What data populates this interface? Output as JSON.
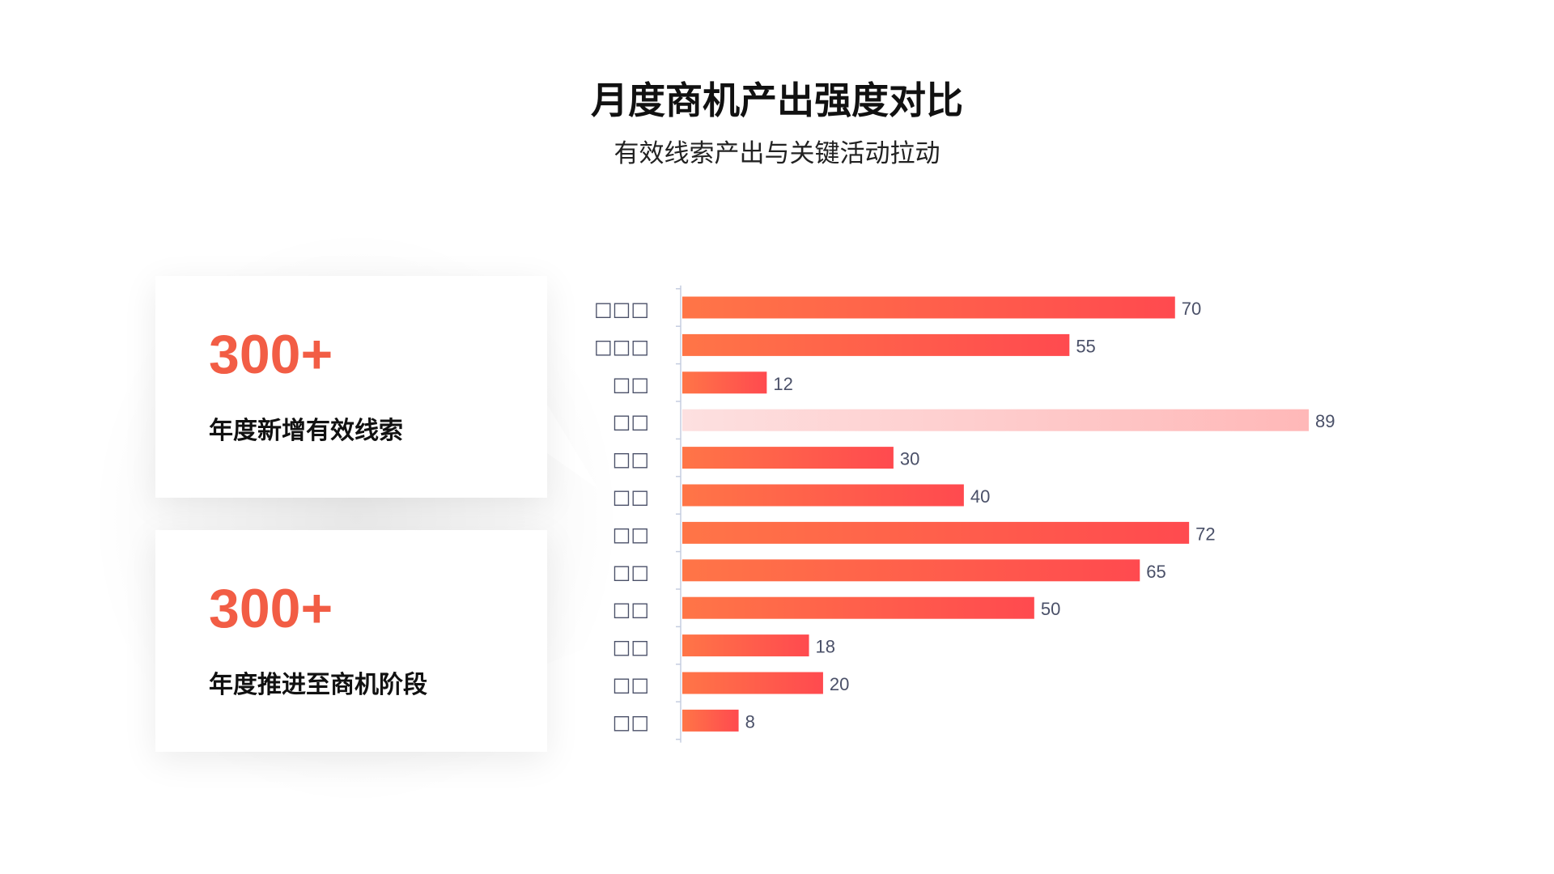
{
  "header": {
    "title": "月度商机产出强度对比",
    "subtitle": "有效线索产出与关键活动拉动"
  },
  "cards": [
    {
      "value": "300+",
      "label": "年度新增有效线索"
    },
    {
      "value": "300+",
      "label": "年度推进至商机阶段"
    }
  ],
  "colors": {
    "accent": "#f25d45",
    "bar_start": "#ff7547",
    "bar_end": "#ff4a4f",
    "highlight_start": "#fde0e0",
    "highlight_end": "#ffb8b8",
    "value_text": "#4a5068"
  },
  "chart_data": {
    "type": "bar",
    "orientation": "horizontal",
    "categories": [
      "□□□",
      "□□□",
      "□□",
      "□□",
      "□□",
      "□□",
      "□□",
      "□□",
      "□□",
      "□□",
      "□□",
      "□□"
    ],
    "values": [
      70,
      55,
      12,
      89,
      30,
      40,
      72,
      65,
      50,
      18,
      20,
      8
    ],
    "highlight_index": 3,
    "xlim": [
      0,
      89
    ],
    "grid": false,
    "data_labels": true
  }
}
